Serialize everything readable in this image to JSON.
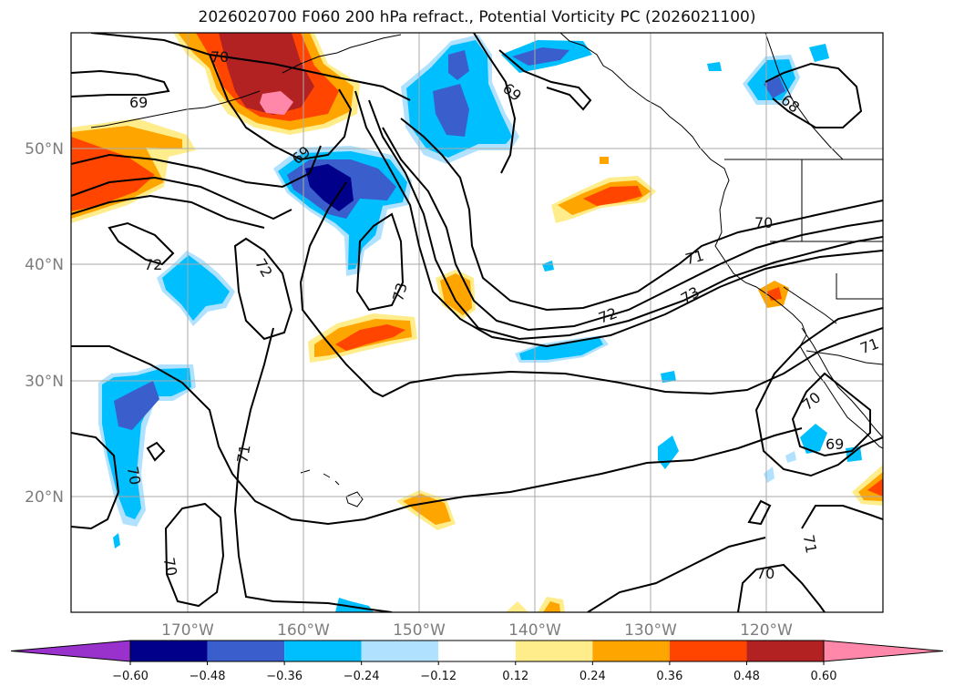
{
  "title": "2026020700 F060 200 hPa refract., Potential Vorticity PC (2026021100)",
  "map": {
    "latitude_labels": [
      "50°N",
      "40°N",
      "30°N",
      "20°N"
    ],
    "longitude_labels": [
      "170°W",
      "160°W",
      "150°W",
      "140°W",
      "130°W",
      "120°W"
    ],
    "contour_labels": [
      {
        "id": "c70a",
        "text": "70"
      },
      {
        "id": "c69a",
        "text": "69"
      },
      {
        "id": "c69b",
        "text": "69"
      },
      {
        "id": "c69c",
        "text": "69"
      },
      {
        "id": "c68",
        "text": "68"
      },
      {
        "id": "c72a",
        "text": "72"
      },
      {
        "id": "c72b",
        "text": "72"
      },
      {
        "id": "c73a",
        "text": "73"
      },
      {
        "id": "c70b",
        "text": "70"
      },
      {
        "id": "c71a",
        "text": "71"
      },
      {
        "id": "c73b",
        "text": "73"
      },
      {
        "id": "c72c",
        "text": "72"
      },
      {
        "id": "c71b",
        "text": "71"
      },
      {
        "id": "c70c",
        "text": "70"
      },
      {
        "id": "c69d",
        "text": "69"
      },
      {
        "id": "c71c",
        "text": "71"
      },
      {
        "id": "c70d",
        "text": "70"
      },
      {
        "id": "c70e",
        "text": "70"
      },
      {
        "id": "c71d",
        "text": "71"
      },
      {
        "id": "c70f",
        "text": "70"
      }
    ]
  },
  "colorbar": {
    "ticks": [
      "−0.60",
      "−0.48",
      "−0.36",
      "−0.24",
      "−0.12",
      "0.12",
      "0.24",
      "0.36",
      "0.48",
      "0.60"
    ],
    "colors": [
      "#9932cc",
      "#00008b",
      "#3a5fcd",
      "#00bfff",
      "#b0e2ff",
      "#ffffff",
      "#ffec8b",
      "#ffa500",
      "#ff4500",
      "#b22222",
      "#ff88aa"
    ]
  }
}
